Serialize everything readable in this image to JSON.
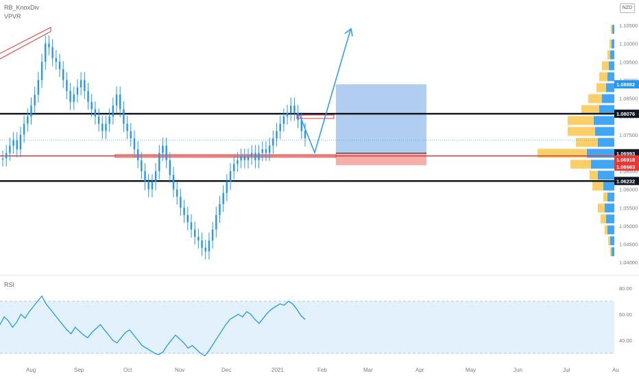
{
  "header": {
    "indicator_1": "RB_KnoxDiv",
    "indicator_2": "VPVR",
    "currency_badge": "NZD"
  },
  "rsi_panel": {
    "label": "RSI"
  },
  "colors": {
    "candle": "#2196f3",
    "support_black": "#131722",
    "level_red": "#e53935",
    "target_zone": "#a9c9ee",
    "stop_zone": "#f4a5a1",
    "vol_up": "#2196f3",
    "vol_down": "#f9c74f",
    "rsi_band": "#e3f1fd",
    "rsi_line": "#2196f3"
  },
  "chart_data": [
    {
      "type": "candlestick",
      "ylim": [
        1.04,
        1.105
      ],
      "x_ticks": [
        "Aug",
        "Sep",
        "Oct",
        "Nov",
        "Dec",
        "2021",
        "Feb",
        "Mar",
        "Apr",
        "May",
        "Jun",
        "Jul",
        "Au"
      ],
      "y_ticks": [
        "1.10500",
        "1.10000",
        "1.09500",
        "1.09000",
        "1.08500",
        "1.08000",
        "1.07500",
        "1.07000",
        "1.06500",
        "1.06000",
        "1.05500",
        "1.05000",
        "1.04500",
        "1.04000"
      ],
      "price_labels": [
        {
          "text": "1.08882",
          "value": 1.08882,
          "style": "blue"
        },
        {
          "text": "1.08076",
          "value": 1.08076,
          "style": "black"
        },
        {
          "text": "1.06993",
          "value": 1.06993,
          "style": "black"
        },
        {
          "text": "1.06918",
          "value": 1.06918,
          "style": "red"
        },
        {
          "text": "1.06663",
          "value": 1.06663,
          "style": "red"
        },
        {
          "text": "1.06232",
          "value": 1.06232,
          "style": "black"
        }
      ],
      "horizontal_levels": [
        {
          "value": 1.08076,
          "color": "black"
        },
        {
          "value": 1.06918,
          "color": "red"
        },
        {
          "value": 1.06232,
          "color": "black"
        }
      ],
      "close_series": [
        1.0685,
        1.07,
        1.072,
        1.0735,
        1.071,
        1.075,
        1.078,
        1.08,
        1.083,
        1.086,
        1.09,
        1.095,
        1.1,
        1.099,
        1.096,
        1.095,
        1.093,
        1.09,
        1.087,
        1.084,
        1.086,
        1.088,
        1.09,
        1.087,
        1.084,
        1.082,
        1.08,
        1.078,
        1.076,
        1.078,
        1.08,
        1.083,
        1.086,
        1.082,
        1.078,
        1.076,
        1.074,
        1.071,
        1.068,
        1.065,
        1.062,
        1.06,
        1.062,
        1.065,
        1.07,
        1.072,
        1.068,
        1.064,
        1.06,
        1.058,
        1.055,
        1.053,
        1.051,
        1.049,
        1.047,
        1.046,
        1.044,
        1.043,
        1.046,
        1.049,
        1.053,
        1.056,
        1.059,
        1.062,
        1.065,
        1.067,
        1.068,
        1.069,
        1.068,
        1.069,
        1.07,
        1.068,
        1.07,
        1.071,
        1.07,
        1.072,
        1.074,
        1.076,
        1.078,
        1.08,
        1.081,
        1.083,
        1.081,
        1.079,
        1.076,
        1.074
      ],
      "projection": [
        [
          1.08,
          "Jan-late"
        ],
        [
          1.07,
          "Feb-early"
        ],
        [
          1.104,
          "Mar"
        ]
      ],
      "trade_box": {
        "entry": 1.06993,
        "target": 1.08882,
        "stop": 1.06663,
        "from": "Feb",
        "to": "Apr"
      },
      "volume_profile": [
        {
          "price": 1.104,
          "up": 3,
          "down": 2
        },
        {
          "price": 1.1,
          "up": 4,
          "down": 3
        },
        {
          "price": 1.097,
          "up": 6,
          "down": 4
        },
        {
          "price": 1.094,
          "up": 8,
          "down": 10
        },
        {
          "price": 1.091,
          "up": 10,
          "down": 12
        },
        {
          "price": 1.088,
          "up": 12,
          "down": 14
        },
        {
          "price": 1.085,
          "up": 18,
          "down": 20
        },
        {
          "price": 1.082,
          "up": 22,
          "down": 26
        },
        {
          "price": 1.079,
          "up": 30,
          "down": 38
        },
        {
          "price": 1.076,
          "up": 28,
          "down": 40
        },
        {
          "price": 1.073,
          "up": 24,
          "down": 32
        },
        {
          "price": 1.07,
          "up": 40,
          "down": 72
        },
        {
          "price": 1.067,
          "up": 34,
          "down": 30
        },
        {
          "price": 1.064,
          "up": 24,
          "down": 12
        },
        {
          "price": 1.061,
          "up": 16,
          "down": 16
        },
        {
          "price": 1.058,
          "up": 10,
          "down": 6
        },
        {
          "price": 1.055,
          "up": 14,
          "down": 10
        },
        {
          "price": 1.052,
          "up": 12,
          "down": 8
        },
        {
          "price": 1.049,
          "up": 10,
          "down": 4
        },
        {
          "price": 1.046,
          "up": 6,
          "down": 3
        },
        {
          "price": 1.043,
          "up": 4,
          "down": 2
        }
      ]
    },
    {
      "type": "line",
      "title": "RSI",
      "ylim": [
        25,
        85
      ],
      "y_ticks": [
        "80.00",
        "60.00",
        "40.00"
      ],
      "band": [
        30,
        70
      ],
      "values": [
        52,
        58,
        55,
        50,
        54,
        60,
        57,
        62,
        66,
        70,
        74,
        68,
        64,
        60,
        56,
        52,
        48,
        45,
        50,
        47,
        44,
        42,
        46,
        49,
        52,
        48,
        44,
        40,
        38,
        42,
        46,
        48,
        44,
        40,
        36,
        34,
        32,
        30,
        29,
        31,
        36,
        40,
        44,
        41,
        38,
        34,
        36,
        33,
        30,
        28,
        32,
        37,
        42,
        47,
        52,
        56,
        58,
        60,
        58,
        62,
        60,
        56,
        53,
        57,
        61,
        64,
        66,
        68,
        67,
        70,
        68,
        64,
        59,
        56
      ]
    }
  ]
}
